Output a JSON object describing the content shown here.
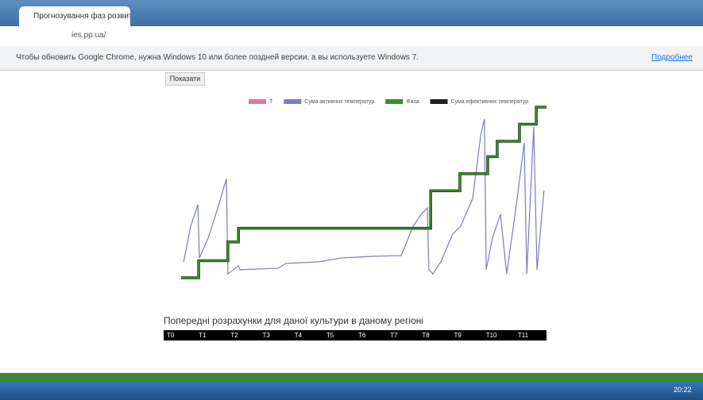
{
  "browser": {
    "tab_title": "Прогнозування фаз розвитку",
    "url": "ies.pp.ua/",
    "infobar_text": "Чтобы обновить Google Chrome, нужна Windows 10 или более поздней версии, а вы используете Windows 7.",
    "infobar_link": "Подробнее"
  },
  "button": "Показати",
  "chart_data": {
    "type": "line",
    "xlim": [
      0,
      100
    ],
    "ylim": [
      0,
      100
    ],
    "series": [
      {
        "name": "T",
        "color": "#e07a9a",
        "x": [],
        "values": []
      },
      {
        "name": "Сума активних температур",
        "color": "#7b7bc4",
        "x": [
          0.7,
          2.6,
          4.6,
          5.0,
          7.4,
          10.2,
          12.4,
          12.8,
          15.7,
          16.1,
          26.5,
          28.7,
          37.4,
          43.9,
          52.6,
          60.2,
          61.3,
          63.5,
          65.7,
          67.4,
          67.8,
          68.9,
          71.1,
          74.3,
          76.5,
          79.8,
          82.0,
          83.0,
          83.5,
          85.2,
          87.4,
          89.1,
          91.7,
          93.9,
          94.6,
          96.5,
          97.4,
          99.3
        ],
        "values": [
          9.3,
          30.2,
          42.8,
          11.6,
          23.3,
          41.9,
          58.1,
          2.3,
          7.0,
          4.7,
          5.6,
          8.4,
          9.3,
          11.6,
          12.6,
          13.0,
          18.6,
          30.2,
          37.2,
          40.9,
          4.7,
          2.3,
          9.3,
          25.6,
          30.2,
          46.5,
          83.7,
          93.0,
          4.7,
          23.3,
          37.2,
          2.3,
          41.9,
          79.1,
          2.3,
          88.4,
          4.7,
          51.2
        ]
      },
      {
        "name": "Фаза",
        "color": "#3c8c2c",
        "x": [
          0,
          4.8,
          4.8,
          12.8,
          12.8,
          15.7,
          15.7,
          68.3,
          68.3,
          76.3,
          76.3,
          83.9,
          83.9,
          86.5,
          86.5,
          92.6,
          92.6,
          97.2,
          97.2,
          100
        ],
        "values": [
          0,
          0,
          10,
          10,
          21,
          21,
          29,
          29,
          51,
          51,
          61,
          61,
          71,
          71,
          80,
          80,
          90,
          90,
          100,
          100
        ]
      },
      {
        "name": "Сума ефективних температур",
        "color": "#222222",
        "x": [],
        "values": []
      }
    ]
  },
  "table": {
    "title": "Попередні розрахунки для даної культури в даному регіоні",
    "headers": [
      "T0",
      "T1",
      "T2",
      "T3",
      "T4",
      "T5",
      "T6",
      "T7",
      "T8",
      "T9",
      "T10",
      "T11"
    ]
  },
  "taskbar": {
    "time": "20:22"
  }
}
